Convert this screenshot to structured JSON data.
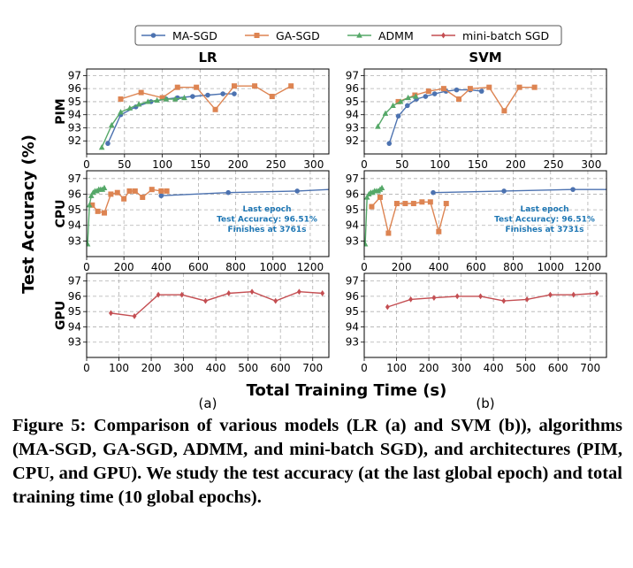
{
  "legend": [
    {
      "name": "MA-SGD",
      "color": "#4C72B0",
      "marker": "circle"
    },
    {
      "name": "GA-SGD",
      "color": "#DD8452",
      "marker": "square"
    },
    {
      "name": "ADMM",
      "color": "#55A868",
      "marker": "triangle"
    },
    {
      "name": "mini-batch SGD",
      "color": "#C44E52",
      "marker": "diamond"
    }
  ],
  "col_titles": [
    "LR",
    "SVM"
  ],
  "row_labels": [
    "PIM",
    "CPU",
    "GPU"
  ],
  "ylabel": "Test Accuracy (%)",
  "xlabel": "Total Training Time (s)",
  "sublabels": [
    "(a)",
    "(b)"
  ],
  "caption": "Figure 5: Comparison of various models (LR (a) and SVM (b)), algorithms (MA-SGD, GA-SGD, ADMM, and mini-batch SGD), and architectures (PIM, CPU, and GPU). We study the test accuracy (at the last global epoch) and total training time (10 global epochs).",
  "chart_data": [
    {
      "type": "line",
      "model": "LR",
      "arch": "PIM",
      "xlim": [
        0,
        320
      ],
      "ylim": [
        91,
        97.5
      ],
      "xticks": [
        0,
        50,
        100,
        150,
        200,
        250,
        300
      ],
      "yticks": [
        92,
        93,
        94,
        95,
        96,
        97
      ],
      "grid": true,
      "series": [
        {
          "name": "MA-SGD",
          "x": [
            28,
            45,
            65,
            85,
            105,
            120,
            140,
            160,
            180,
            195
          ],
          "y": [
            91.8,
            94.0,
            94.6,
            95.0,
            95.2,
            95.3,
            95.4,
            95.5,
            95.6,
            95.6
          ]
        },
        {
          "name": "GA-SGD",
          "x": [
            45,
            72,
            100,
            120,
            145,
            170,
            195,
            222,
            245,
            270
          ],
          "y": [
            95.2,
            95.7,
            95.3,
            96.1,
            96.1,
            94.4,
            96.2,
            96.2,
            95.4,
            96.2
          ]
        },
        {
          "name": "ADMM",
          "x": [
            20,
            33,
            45,
            57,
            69,
            81,
            93,
            105,
            117,
            129
          ],
          "y": [
            91.5,
            93.2,
            94.2,
            94.5,
            94.8,
            95.0,
            95.1,
            95.2,
            95.2,
            95.3
          ]
        }
      ]
    },
    {
      "type": "line",
      "model": "SVM",
      "arch": "PIM",
      "xlim": [
        0,
        320
      ],
      "ylim": [
        91,
        97.5
      ],
      "xticks": [
        0,
        50,
        100,
        150,
        200,
        250,
        300
      ],
      "yticks": [
        92,
        93,
        94,
        95,
        96,
        97
      ],
      "grid": true,
      "series": [
        {
          "name": "MA-SGD",
          "x": [
            33,
            45,
            57,
            69,
            81,
            93,
            108,
            122,
            140,
            155
          ],
          "y": [
            91.8,
            93.9,
            94.7,
            95.2,
            95.4,
            95.6,
            95.8,
            95.9,
            95.9,
            95.8
          ]
        },
        {
          "name": "GA-SGD",
          "x": [
            45,
            67,
            85,
            105,
            125,
            140,
            165,
            185,
            205,
            225
          ],
          "y": [
            95.0,
            95.5,
            95.8,
            96.0,
            95.2,
            96.0,
            96.1,
            94.3,
            96.1,
            96.1
          ]
        },
        {
          "name": "ADMM",
          "x": [
            18,
            28,
            38,
            48,
            58,
            68
          ],
          "y": [
            93.1,
            94.1,
            94.7,
            95.0,
            95.3,
            95.4
          ]
        }
      ]
    },
    {
      "type": "line",
      "model": "LR",
      "arch": "CPU",
      "xlim": [
        0,
        1300
      ],
      "ylim": [
        92,
        97.5
      ],
      "xticks": [
        0,
        200,
        400,
        600,
        800,
        1000,
        1200
      ],
      "yticks": [
        93,
        94,
        95,
        96,
        97
      ],
      "grid": true,
      "annotation": [
        "Last epoch",
        "Test Accuracy: 96.51%",
        "Finishes at 3761s"
      ],
      "series": [
        {
          "name": "MA-SGD",
          "x": [
            400,
            760,
            1130,
            1300
          ],
          "y": [
            95.9,
            96.1,
            96.2,
            96.3
          ]
        },
        {
          "name": "GA-SGD",
          "x": [
            30,
            60,
            95,
            130,
            165,
            200,
            230,
            260,
            300,
            350,
            400,
            430
          ],
          "y": [
            95.3,
            94.9,
            94.8,
            96.0,
            96.1,
            95.7,
            96.2,
            96.2,
            95.8,
            96.3,
            96.2,
            96.2
          ]
        },
        {
          "name": "ADMM",
          "x": [
            5,
            15,
            25,
            35,
            45,
            55,
            65,
            75,
            85,
            95
          ],
          "y": [
            92.8,
            95.3,
            95.9,
            96.1,
            96.2,
            96.2,
            96.3,
            96.3,
            96.3,
            96.4
          ]
        }
      ]
    },
    {
      "type": "line",
      "model": "SVM",
      "arch": "CPU",
      "xlim": [
        0,
        1300
      ],
      "ylim": [
        92,
        97.5
      ],
      "xticks": [
        0,
        200,
        400,
        600,
        800,
        1000,
        1200
      ],
      "yticks": [
        93,
        94,
        95,
        96,
        97
      ],
      "grid": true,
      "annotation": [
        "Last epoch",
        "Test Accuracy: 96.51%",
        "Finishes at 3731s"
      ],
      "series": [
        {
          "name": "MA-SGD",
          "x": [
            370,
            750,
            1120,
            1300
          ],
          "y": [
            96.1,
            96.2,
            96.3,
            96.3
          ]
        },
        {
          "name": "GA-SGD",
          "x": [
            40,
            85,
            130,
            175,
            220,
            265,
            310,
            355,
            400,
            440
          ],
          "y": [
            95.2,
            95.8,
            93.5,
            95.4,
            95.4,
            95.4,
            95.5,
            95.5,
            93.6,
            95.4
          ]
        },
        {
          "name": "ADMM",
          "x": [
            5,
            15,
            25,
            35,
            45,
            55,
            65,
            75,
            85,
            95
          ],
          "y": [
            92.8,
            95.8,
            96.0,
            96.1,
            96.1,
            96.2,
            96.2,
            96.2,
            96.3,
            96.4
          ]
        }
      ]
    },
    {
      "type": "line",
      "model": "LR",
      "arch": "GPU",
      "xlim": [
        0,
        750
      ],
      "ylim": [
        92,
        97.5
      ],
      "xticks": [
        0,
        100,
        200,
        300,
        400,
        500,
        600,
        700
      ],
      "yticks": [
        93,
        94,
        95,
        96,
        97
      ],
      "grid": true,
      "series": [
        {
          "name": "mini-batch SGD",
          "x": [
            75,
            148,
            222,
            295,
            368,
            440,
            512,
            585,
            658,
            730
          ],
          "y": [
            94.9,
            94.7,
            96.1,
            96.1,
            95.7,
            96.2,
            96.3,
            95.7,
            96.3,
            96.2
          ]
        }
      ]
    },
    {
      "type": "line",
      "model": "SVM",
      "arch": "GPU",
      "xlim": [
        0,
        750
      ],
      "ylim": [
        92,
        97.5
      ],
      "xticks": [
        0,
        100,
        200,
        300,
        400,
        500,
        600,
        700
      ],
      "yticks": [
        93,
        94,
        95,
        96,
        97
      ],
      "grid": true,
      "series": [
        {
          "name": "mini-batch SGD",
          "x": [
            72,
            144,
            216,
            288,
            360,
            432,
            504,
            576,
            648,
            720
          ],
          "y": [
            95.3,
            95.8,
            95.9,
            96.0,
            96.0,
            95.7,
            95.8,
            96.1,
            96.1,
            96.2
          ]
        }
      ]
    }
  ]
}
